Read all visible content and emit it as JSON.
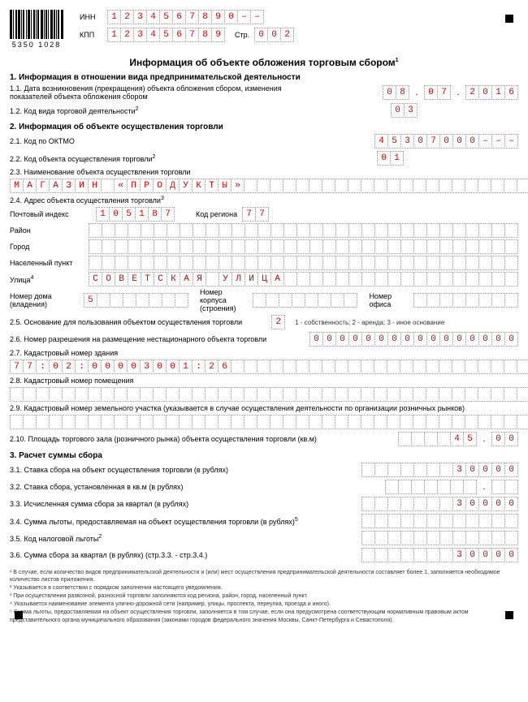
{
  "header": {
    "barcode_number": "5350 1028",
    "inn_label": "ИНН",
    "inn": [
      "1",
      "2",
      "3",
      "4",
      "5",
      "6",
      "7",
      "8",
      "9",
      "0",
      "–",
      "–"
    ],
    "kpp_label": "КПП",
    "kpp": [
      "1",
      "2",
      "3",
      "4",
      "5",
      "6",
      "7",
      "8",
      "9"
    ],
    "page_label": "Стр.",
    "page": [
      "0",
      "0",
      "2"
    ]
  },
  "title": "Информация об объекте обложения торговым сбором",
  "section1": {
    "heading": "1. Информация в отношении вида предпринимательской деятельности",
    "f11_label": "1.1. Дата возникновения (прекращения) объекта обложения сбором, изменения показателей объекта обложения сбором",
    "date_d": [
      "0",
      "8"
    ],
    "date_m": [
      "0",
      "7"
    ],
    "date_y": [
      "2",
      "0",
      "1",
      "6"
    ],
    "f12_label": "1.2. Код вида торговой деятельности",
    "f12": [
      "0",
      "3"
    ]
  },
  "section2": {
    "heading": "2. Информация об объекте осуществления торговли",
    "f21_label": "2.1. Код по ОКТМО",
    "f21": [
      "4",
      "5",
      "3",
      "0",
      "7",
      "0",
      "0",
      "0",
      "–",
      "–",
      "–"
    ],
    "f22_label": "2.2. Код объекта осуществления торговли",
    "f22": [
      "0",
      "1"
    ],
    "f23_label": "2.3. Наименование объекта осуществления торговли",
    "f23": [
      "М",
      "А",
      "Г",
      "А",
      "З",
      "И",
      "Н",
      "",
      "«",
      "П",
      "Р",
      "О",
      "Д",
      "У",
      "К",
      "Т",
      "Ы",
      "»",
      "",
      "",
      "",
      "",
      "",
      "",
      "",
      "",
      "",
      "",
      "",
      "",
      "",
      "",
      "",
      "",
      "",
      "",
      "",
      "",
      "",
      ""
    ],
    "f24_label": "2.4. Адрес объекта осуществления торговли",
    "postal_label": "Почтовый индекс",
    "postal": [
      "1",
      "0",
      "5",
      "1",
      "8",
      "7"
    ],
    "region_label": "Код региона",
    "region": [
      "7",
      "7"
    ],
    "district_label": "Район",
    "city_label": "Город",
    "settlement_label": "Населенный пункт",
    "street_label": "Улица",
    "street": [
      "С",
      "О",
      "В",
      "Е",
      "Т",
      "С",
      "К",
      "А",
      "Я",
      "",
      "У",
      "Л",
      "И",
      "Ц",
      "А",
      "",
      "",
      "",
      "",
      "",
      "",
      "",
      "",
      "",
      "",
      "",
      "",
      "",
      "",
      "",
      "",
      "",
      ""
    ],
    "house_label": "Номер дома (владения)",
    "house": [
      "5",
      "",
      "",
      "",
      "",
      "",
      "",
      ""
    ],
    "korpus_label": "Номер корпуса (строения)",
    "office_label": "Номер офиса",
    "f25_label": "2.5. Основание для пользования объектом осуществления торговли",
    "f25": [
      "2"
    ],
    "f25_note": "1 - собственность; 2 - аренда; 3 - иное основание",
    "f26_label": "2.6. Номер разрешения на размещение нестационарного объекта торговли",
    "f26": [
      "0",
      "0",
      "0",
      "0",
      "0",
      "0",
      "0",
      "0",
      "0",
      "0",
      "0",
      "0",
      "0",
      "0",
      "0",
      "0"
    ],
    "f27_label": "2.7. Кадастровый номер здания",
    "f27": [
      "7",
      "7",
      ":",
      "0",
      "2",
      ":",
      "0",
      "0",
      "0",
      "0",
      "3",
      "0",
      "0",
      "1",
      ":",
      "2",
      "6",
      "",
      "",
      "",
      "",
      "",
      "",
      "",
      "",
      "",
      "",
      "",
      "",
      "",
      "",
      "",
      "",
      "",
      "",
      "",
      "",
      "",
      "",
      ""
    ],
    "f28_label": "2.8. Кадастровый номер помещения",
    "f29_label": "2.9. Кадастровый номер земельного участка (указывается в случае осуществления деятельности по организации розничных рынков)",
    "f210_label": "2.10. Площадь торгового зала (розничного рынка) объекта осуществления торговли (кв.м)",
    "f210_int": [
      "",
      "",
      "",
      "",
      "4",
      "5"
    ],
    "f210_dec": [
      "0",
      "0"
    ]
  },
  "section3": {
    "heading": "3. Расчет суммы сбора",
    "f31_label": "3.1. Ставка сбора на объект осуществления торговли (в рублях)",
    "f31": [
      "",
      "",
      "",
      "",
      "",
      "",
      "",
      "3",
      "0",
      "0",
      "0",
      "0"
    ],
    "f32_label": "3.2. Ставка сбора, установленная в кв.м (в рублях)",
    "f32_int": [
      "",
      "",
      "",
      "",
      "",
      "",
      ""
    ],
    "f32_dec": [
      "",
      ""
    ],
    "f33_label": "3.3. Исчисленная сумма сбора за квартал (в рублях)",
    "f33": [
      "",
      "",
      "",
      "",
      "",
      "",
      "",
      "3",
      "0",
      "0",
      "0",
      "0"
    ],
    "f34_label": "3.4. Сумма льготы, предоставляемая на объект осуществления торговли (в рублях)",
    "f35_label": "3.5. Код налоговой льготы",
    "f36_label": "3.6. Сумма сбора за квартал (в рублях) (стр.3.3. - стр.3.4.)",
    "f36": [
      "",
      "",
      "",
      "",
      "",
      "",
      "",
      "3",
      "0",
      "0",
      "0",
      "0"
    ]
  },
  "footnotes": {
    "n1": "¹ В случае, если количество видов предпринимательской деятельности и (или) мест осуществления предпринимательской деятельности составляет более 1, заполняется необходимое количество листов приложения.",
    "n2": "² Указывается в соответствии с порядком заполнения настоящего уведомления.",
    "n3": "³ При осуществлении развозной, разносной торговли заполняются код региона, район, город, населенный пункт.",
    "n4": "⁴ Указывается наименование элемента улично-дорожной сети (например, улицы, проспекта, переулка, проезда и иного).",
    "n5": "⁵ Сумма льготы, предоставляемая на объект осуществления торговли, заполняется в том случае, если она предусмотрена соответствующим нормативным правовым актом представительного органа муниципального образования (законами городов федерального значения Москвы, Санкт-Петербурга и Севастополя)."
  },
  "style": {
    "input_color": "#d00",
    "border_color": "#999"
  }
}
